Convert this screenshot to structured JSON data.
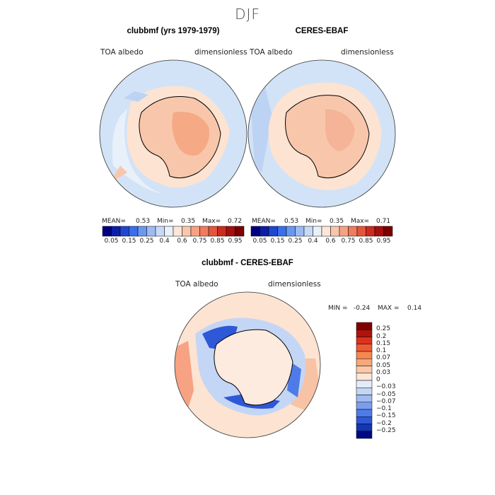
{
  "figure": {
    "season": "DJF"
  },
  "panels": [
    {
      "title": "clubbmf (yrs 1979-1979)",
      "variable_label": "TOA albedo",
      "units_label": "dimensionless",
      "stats": {
        "mean_label": "MEAN=",
        "mean": "0.53",
        "min_label": "Min=",
        "min": "0.35",
        "max_label": "Max=",
        "max": "0.72"
      }
    },
    {
      "title": "CERES-EBAF",
      "variable_label": "TOA albedo",
      "units_label": "dimensionless",
      "stats": {
        "mean_label": "MEAN=",
        "mean": "0.53",
        "min_label": "Min=",
        "min": "0.35",
        "max_label": "Max=",
        "max": "0.71"
      }
    }
  ],
  "colorbar_abs": {
    "ticks": [
      "0.05",
      "0.15",
      "0.25",
      "0.4",
      "0.6",
      "0.75",
      "0.85",
      "0.95"
    ],
    "colors": [
      "#00007f",
      "#0c1ea8",
      "#1f46d1",
      "#3a6eeb",
      "#6a98f0",
      "#9dbbf3",
      "#c6d9f6",
      "#e8f0fa",
      "#fce6d8",
      "#f9c6ac",
      "#f6a283",
      "#f27a5e",
      "#e6543c",
      "#cc2b1f",
      "#a70e0e",
      "#7a0000"
    ]
  },
  "diff_panel": {
    "title": "clubbmf - CERES-EBAF",
    "variable_label": "TOA albedo",
    "units_label": "dimensionless",
    "stats": {
      "min_label": "MIN =",
      "min": "-0.24",
      "max_label": "MAX =",
      "max": "0.14"
    }
  },
  "colorbar_diff": {
    "ticks": [
      "0.25",
      "0.2",
      "0.15",
      "0.1",
      "0.07",
      "0.05",
      "0.03",
      "0",
      "−0.03",
      "−0.05",
      "−0.07",
      "−0.1",
      "−0.15",
      "−0.2",
      "−0.25"
    ],
    "colors": [
      "#7f0000",
      "#b0120c",
      "#d9331f",
      "#ee5b34",
      "#f5874f",
      "#f8a77a",
      "#fac8a8",
      "#fde5d4",
      "#e3ecfa",
      "#c4d6f5",
      "#a0bbf0",
      "#7a9def",
      "#4f7be6",
      "#2f58d8",
      "#1435b4",
      "#000a80"
    ]
  }
}
